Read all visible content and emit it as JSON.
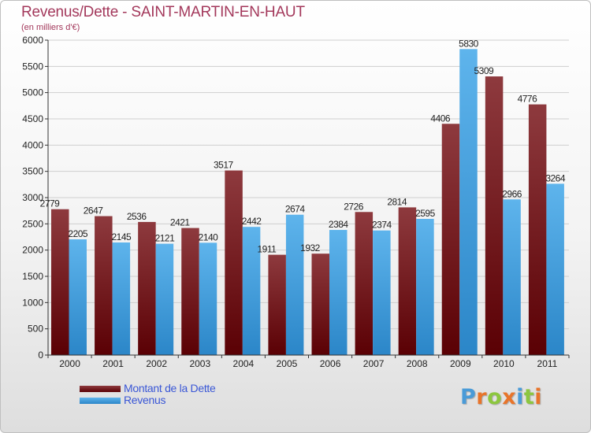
{
  "title": "Revenus/Dette - SAINT-MARTIN-EN-HAUT",
  "subtitle": "(en milliers d'€)",
  "logo": {
    "text": "Proxiti",
    "letters": [
      "P",
      "r",
      "o",
      "x",
      "i",
      "t",
      "i"
    ],
    "colors": [
      "#4a9bd8",
      "#e8742a",
      "#8cc63f",
      "#e8742a",
      "#4a9bd8",
      "#8cc63f",
      "#e8742a"
    ]
  },
  "colors": {
    "dette_dark": "#5a0004",
    "dette_light": "#8e3a3e",
    "revenus_dark": "#2b86c8",
    "revenus_light": "#5eb4ec",
    "title": "#a3385b",
    "legend_text": "#3a57d6"
  },
  "legend": [
    {
      "label": "Montant de la Dette"
    },
    {
      "label": "Revenus"
    }
  ],
  "chart_data": {
    "type": "bar",
    "title": "Revenus/Dette - SAINT-MARTIN-EN-HAUT",
    "subtitle": "(en milliers d'€)",
    "xlabel": "",
    "ylabel": "",
    "ylim": [
      0,
      6000
    ],
    "yticks": [
      0,
      500,
      1000,
      1500,
      2000,
      2500,
      3000,
      3500,
      4000,
      4500,
      5000,
      5500,
      6000
    ],
    "grid": true,
    "legend_position": "bottom-left",
    "categories": [
      "2000",
      "2001",
      "2002",
      "2003",
      "2004",
      "2005",
      "2006",
      "2007",
      "2008",
      "2009",
      "2010",
      "2011"
    ],
    "series": [
      {
        "name": "Montant de la Dette",
        "values": [
          2779,
          2647,
          2536,
          2421,
          3517,
          1911,
          1932,
          2726,
          2814,
          4406,
          5309,
          4776
        ]
      },
      {
        "name": "Revenus",
        "values": [
          2205,
          2145,
          2121,
          2140,
          2442,
          2674,
          2384,
          2374,
          2595,
          5830,
          2966,
          3264
        ]
      }
    ]
  }
}
